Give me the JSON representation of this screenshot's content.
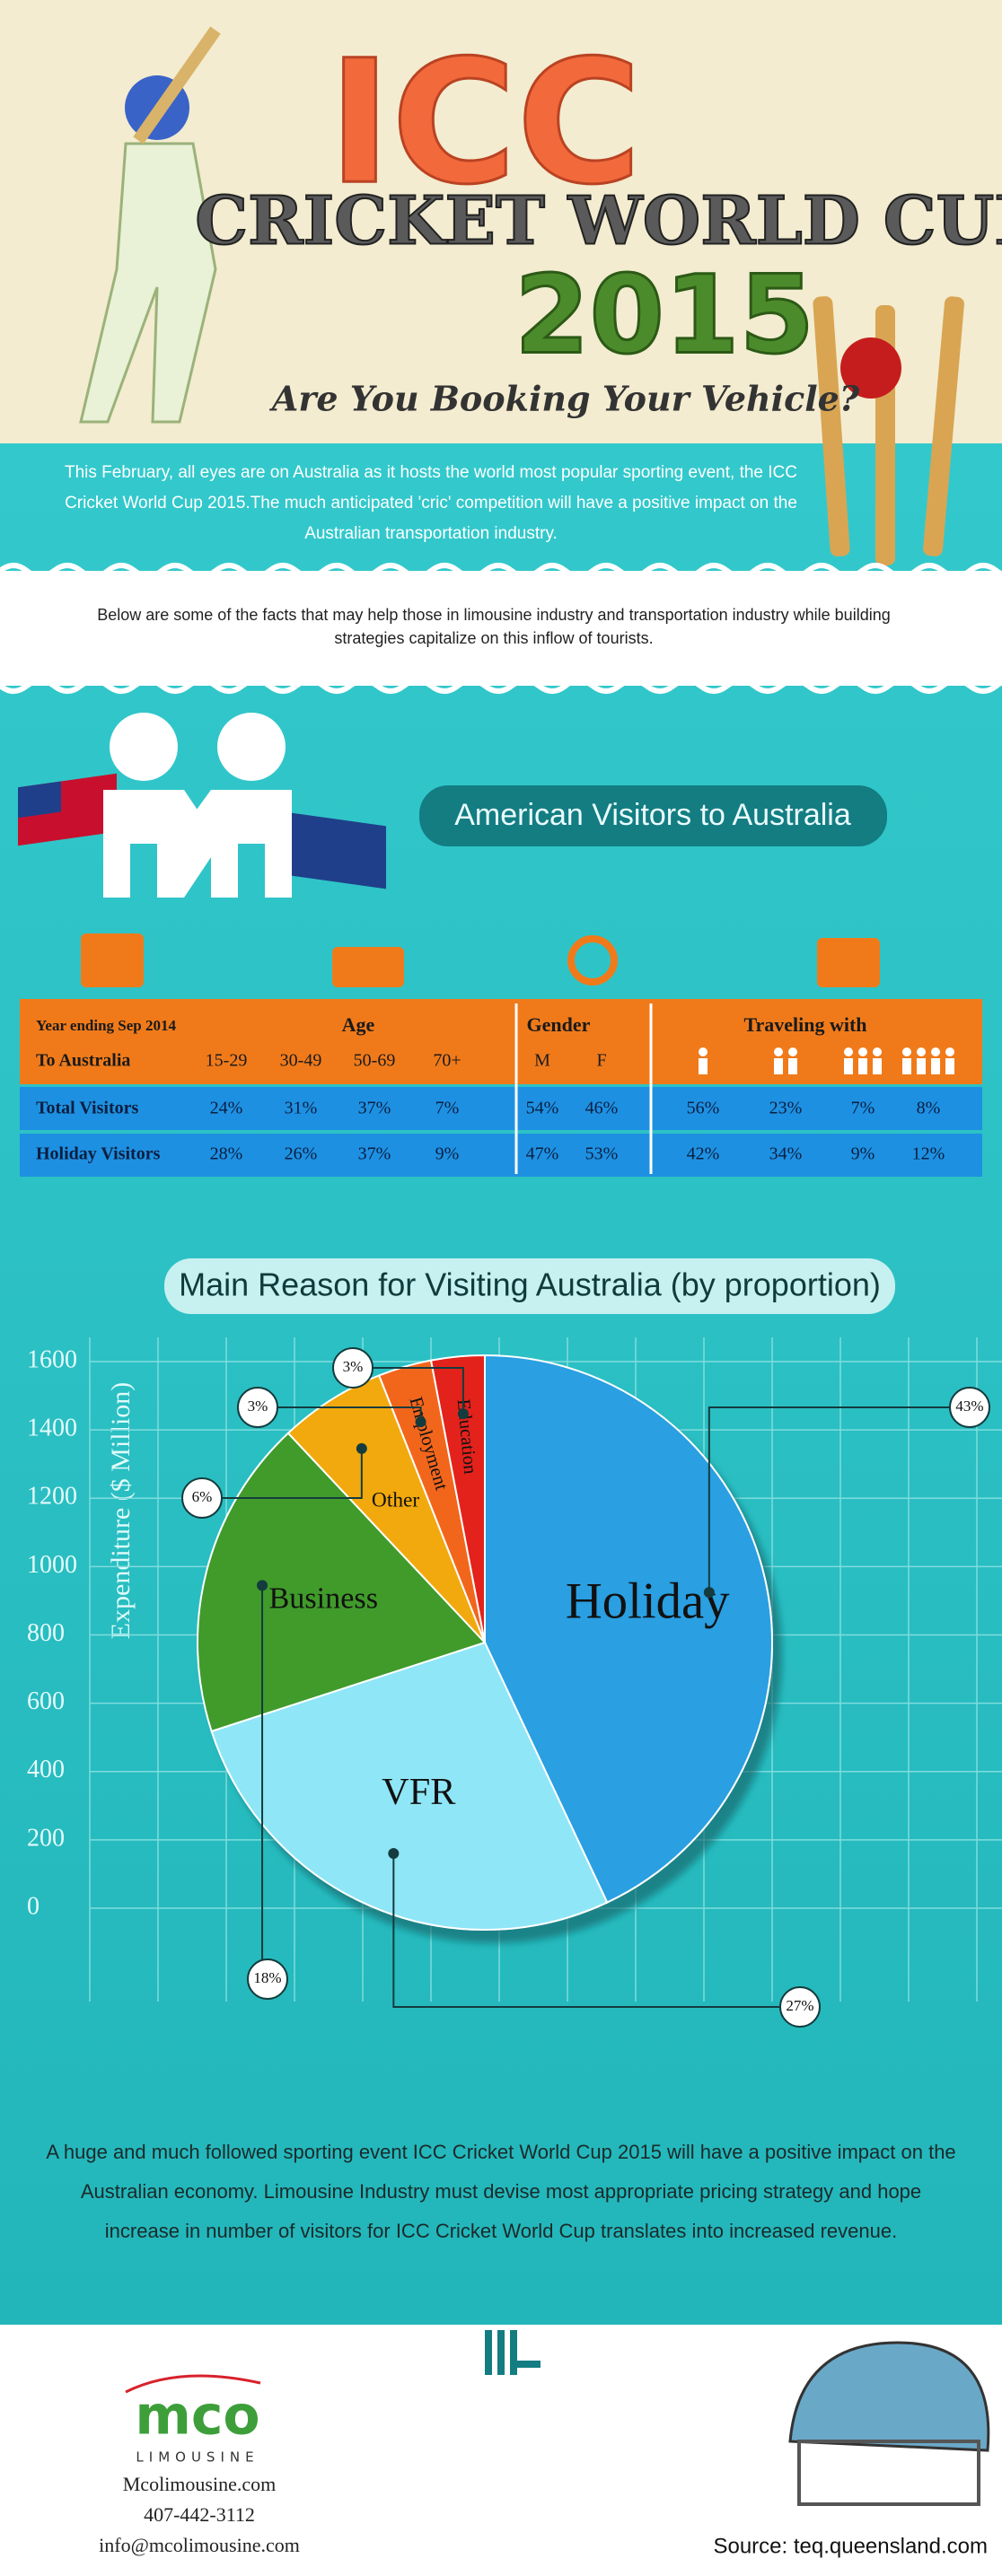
{
  "header": {
    "title": "ICC",
    "subtitle": "CRICKET WORLD CUP",
    "year": "2015",
    "tagline": "Are You Booking Your Vehicle?"
  },
  "intro": "This February, all eyes are on Australia as it hosts the world most popular sporting event, the ICC Cricket World Cup 2015.The much anticipated 'cric' competition will have a positive impact on the Australian transportation industry.",
  "facts_note": "Below are some of the facts that may help those in limousine industry and transportation industry while building strategies capitalize on this inflow of tourists.",
  "section_title": "American Visitors to Australia",
  "table": {
    "header_row1": [
      "Year ending Sep 2014",
      "Age",
      "Gender",
      "Traveling with"
    ],
    "header_row2": [
      "To Australia",
      "15-29",
      "30-49",
      "50-69",
      "70+",
      "M",
      "F"
    ],
    "rows": [
      [
        "Total Visitors",
        "24%",
        "31%",
        "37%",
        "7%",
        "54%",
        "46%",
        "56%",
        "23%",
        "7%",
        "8%"
      ],
      [
        "Holiday Visitors",
        "28%",
        "26%",
        "37%",
        "9%",
        "47%",
        "53%",
        "42%",
        "34%",
        "9%",
        "12%"
      ]
    ]
  },
  "chart_data": {
    "type": "pie",
    "title": "Main Reason for Visiting Australia (by proportion)",
    "categories": [
      "Holiday",
      "VFR",
      "Business",
      "Other",
      "Employment",
      "Education"
    ],
    "values": [
      43,
      27,
      18,
      6,
      3,
      3
    ],
    "value_labels": [
      "43%",
      "27%",
      "18%",
      "6%",
      "3%",
      "3%"
    ],
    "colors": [
      "#2a9fe2",
      "#8fe6f7",
      "#3f9b2c",
      "#f2a90f",
      "#f2661b",
      "#e3231b"
    ],
    "ylabel": "Expenditure ($ Million)",
    "ylim": [
      0,
      1600
    ],
    "yticks": [
      0,
      200,
      400,
      600,
      800,
      1000,
      1200,
      1400,
      1600
    ],
    "grid": true
  },
  "conclusion": "A huge and much followed sporting event ICC Cricket World Cup 2015 will have a positive impact on the Australian economy. Limousine Industry must devise most appropriate pricing strategy and hope increase in number of visitors for ICC Cricket World Cup translates into increased revenue.",
  "footer": {
    "logo": "mco",
    "logo_sub": "LIMOUSINE",
    "website": "Mcolimousine.com",
    "phone": "407-442-3112",
    "email": "info@mcolimousine.com",
    "source": "Source: teq.queensland.com"
  }
}
